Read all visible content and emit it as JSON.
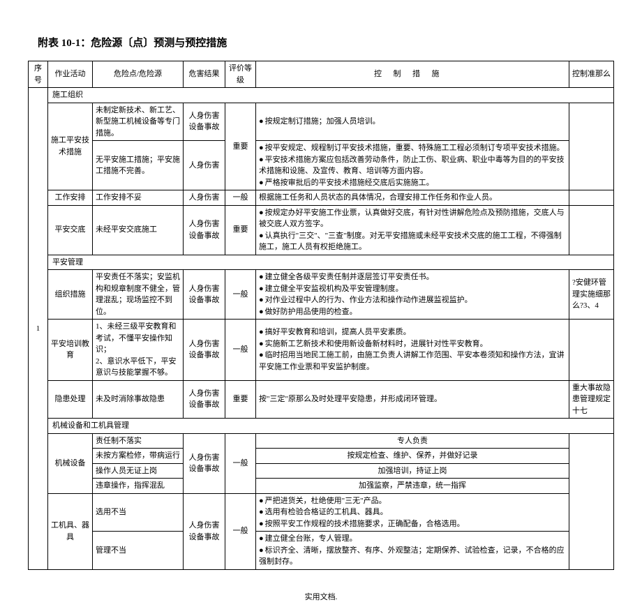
{
  "title": "附表 10-1：危险源〔点〕预测与预控措施",
  "footer": "实用文档.",
  "headers": {
    "seq": "序号",
    "activity": "作业活动",
    "risk": "危险点/危险源",
    "harm": "危害结果",
    "level": "评价等级",
    "measures": "控制措施",
    "control": "控制准那么"
  },
  "seq_1": "1",
  "sections": {
    "org": "施工组织",
    "mgmt": "平安管理",
    "machine": "机械设备和工机具管理"
  },
  "rows": {
    "r1": {
      "act": "施工平安技术措施",
      "risk_a": "未制定新技术、新工艺、新型施工机械设备等专门措施。",
      "risk_b": "无平安施工措施；平安施工措施不完善。",
      "harm_a": "人身伤害设备事故",
      "harm_b": "人身伤害",
      "level": "重要",
      "m_a": "按规定制订措施；加强人员培训。",
      "m_b1": "按平安规定、规程制订平安技术措施，重要、特殊施工工程必须制订专项平安技术措施。",
      "m_b2": "平安技术措施方案应包括改善劳动条件，防止工伤、职业病、职业中毒等为目的的平安技术措施和设施、及宣传、教育、培训等方面内容。",
      "m_b3": "严格按审批后的平安技术措施经交底后实施施工。"
    },
    "r2": {
      "act": "工作安排",
      "risk": "工作安排不妥",
      "harm": "人身伤害",
      "level": "一般",
      "m": "根据施工任务和人员状态的具体情况，合理安排工作任务和作业人员。"
    },
    "r3": {
      "act": "平安交底",
      "risk": "未经平安交底施工",
      "harm": "人身伤害设备事故",
      "level": "重要",
      "m1": "按规定办好平安施工作业票，认真做好交底，有针对性讲解危险点及预防措施，交底人与被交底人双方签字。",
      "m2": "认真执行\"三交\"、\"三查\"制度。对无平安措施或未经平安技术交底的施工工程，不得强制施工，施工人员有权拒绝施工。"
    },
    "r4": {
      "act": "组织措施",
      "risk": "平安责任不落实；安监机构和规章制度不健全，管理混乱；现场监控不到位。",
      "harm": "人身伤害设备事故",
      "level": "一般",
      "m1": "建立健全各级平安责任制并逐层签订平安责任书。",
      "m2": "建立健全平安监视机构及平安管理制度。",
      "m3": "对作业过程中人的行为、作业方法和操作动作进展监视监护。",
      "m4": "做好防护用品使用的检查。",
      "ctrl": "?安健环管理实施细那么?3、4"
    },
    "r5": {
      "act": "平安培训教育",
      "risk": "1、未经三级平安教育和考试，不懂平安操作知识；\n2、意识水平低下，平安意识与技能掌握不够。",
      "harm": "人身伤害设备事故",
      "level": "一般",
      "m1": "搞好平安教育和培训，提高人员平安素质。",
      "m2": "实施新工艺新技术和使用新设备新材料时，进展针对性平安教育。",
      "m3": "临时招用当地民工施工前，由施工负责人讲解工作范围、平安本卷须知和操作方法，宜讲平安施工作业票和平安监护制度。"
    },
    "r6": {
      "act": "隐患处理",
      "risk": "未及时消除事故隐患",
      "harm": "人身伤害设备事故",
      "level": "重要",
      "m": "按\"三定\"原那么及时处理平安隐患，并形成闭环管理。",
      "ctrl": "重大事故隐患管理规定十七"
    },
    "r7": {
      "act": "机械设备",
      "risk_a": "责任制不落实",
      "risk_b": "未按方案检修，带病运行",
      "risk_c": "操作人员无证上岗",
      "risk_d": "违章操作，指挥混乱",
      "harm": "人身伤害设备事故",
      "level": "一般",
      "m_a": "专人负责",
      "m_b": "按规定检查、维护、保养，并做好记录",
      "m_c": "加强培训，持证上岗",
      "m_d": "加强监察，严禁违章，统一指挥"
    },
    "r8": {
      "act": "工机具、器具",
      "risk_a": "选用不当",
      "risk_b": "管理不当",
      "harm": "人身伤害设备事故",
      "level": "一般",
      "m_a1": "严把进货关，杜绝使用\"三无\"产品。",
      "m_a2": "选用有检验合格证的工机具、器具。",
      "m_a3": "按照平安工作规程的技术措施要求，正确配备，合格选用。",
      "m_b1": "建立健全台账，专人管理。",
      "m_b2": "标识齐全、清晰，摆放整齐、有序、外观整洁；定期保养、试验检查，记录，不合格的应强制封存。"
    }
  }
}
